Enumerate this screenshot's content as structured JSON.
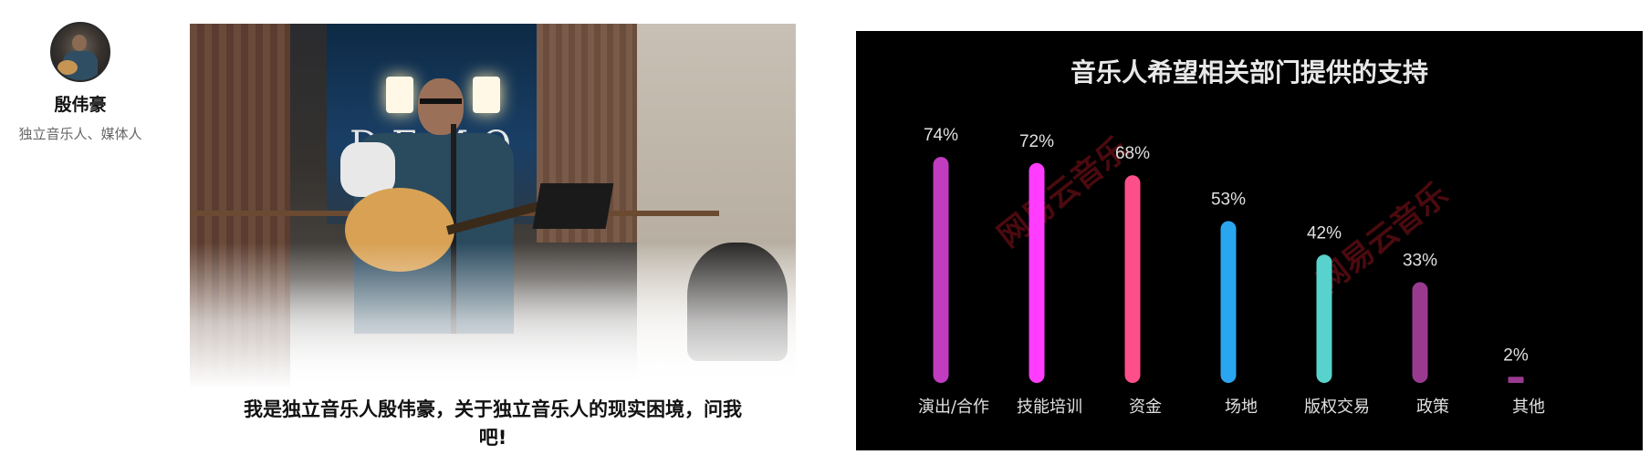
{
  "profile": {
    "name": "殷伟豪",
    "subtitle": "独立音乐人、媒体人"
  },
  "photo": {
    "sign_text": "DEMO"
  },
  "caption": {
    "line1": "我是独立音乐人殷伟豪，关于独立音乐人的现实困境，问我",
    "line2": "吧!"
  },
  "watermark": {
    "text1": "网易云音乐",
    "text2": "网易云音乐"
  },
  "chart_data": {
    "type": "bar",
    "title": "音乐人希望相关部门提供的支持",
    "categories": [
      "演出/合作",
      "技能培训",
      "资金",
      "场地",
      "版权交易",
      "政策",
      "其他"
    ],
    "values": [
      74,
      72,
      68,
      53,
      42,
      33,
      2
    ],
    "value_labels": [
      "74%",
      "72%",
      "68%",
      "53%",
      "42%",
      "33%",
      "2%"
    ],
    "colors": [
      "#c13cbf",
      "#ff3cff",
      "#ff4f8b",
      "#2aa6f0",
      "#58d2cc",
      "#9a3a8f",
      "#9a3a8f"
    ],
    "ylim": [
      0,
      100
    ],
    "grid": false,
    "legend": "none"
  }
}
